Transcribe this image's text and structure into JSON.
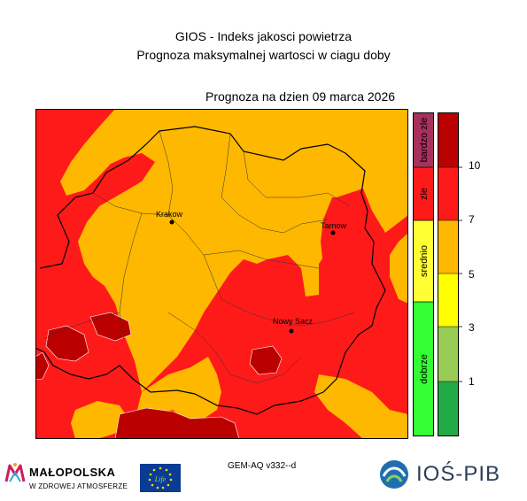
{
  "header": {
    "title_line1": "GIOS - Indeks jakosci powietrza",
    "title_line2": "Prognoza maksymalnej wartosci w ciagu doby",
    "forecast_date": "Prognoza na dzien  09 marca 2026"
  },
  "map": {
    "cities": [
      {
        "name": "Krakow"
      },
      {
        "name": "Tarnow"
      },
      {
        "name": "Nowy Sacz"
      }
    ],
    "colors": {
      "zle": "#ff1a1a",
      "srednio": "#ffb800",
      "bardzo_zle": "#bb0000"
    }
  },
  "legend": {
    "categories": [
      {
        "label": "bardzo zle",
        "color": "#a8305a"
      },
      {
        "label": "zle",
        "color": "#ff1a1a"
      },
      {
        "label": "srednio",
        "color": "#ffff33"
      },
      {
        "label": "dobrze",
        "color": "#33ff33"
      }
    ],
    "value_bands": [
      {
        "color": "#bb0000"
      },
      {
        "color": "#ff1a1a"
      },
      {
        "color": "#ffb800"
      },
      {
        "color": "#ffff00"
      },
      {
        "color": "#99cc55"
      },
      {
        "color": "#22aa44"
      }
    ],
    "tick_labels": [
      "10",
      "7",
      "5",
      "3",
      "1"
    ]
  },
  "footer": {
    "model": "GEM-AQ v332--d",
    "malopolska_name": "MAŁOPOLSKA",
    "malopolska_tagline": "W ZDROWEJ ATMOSFERZE",
    "eu_life_text": "Life",
    "ios_name": "IOŚ-PIB"
  }
}
